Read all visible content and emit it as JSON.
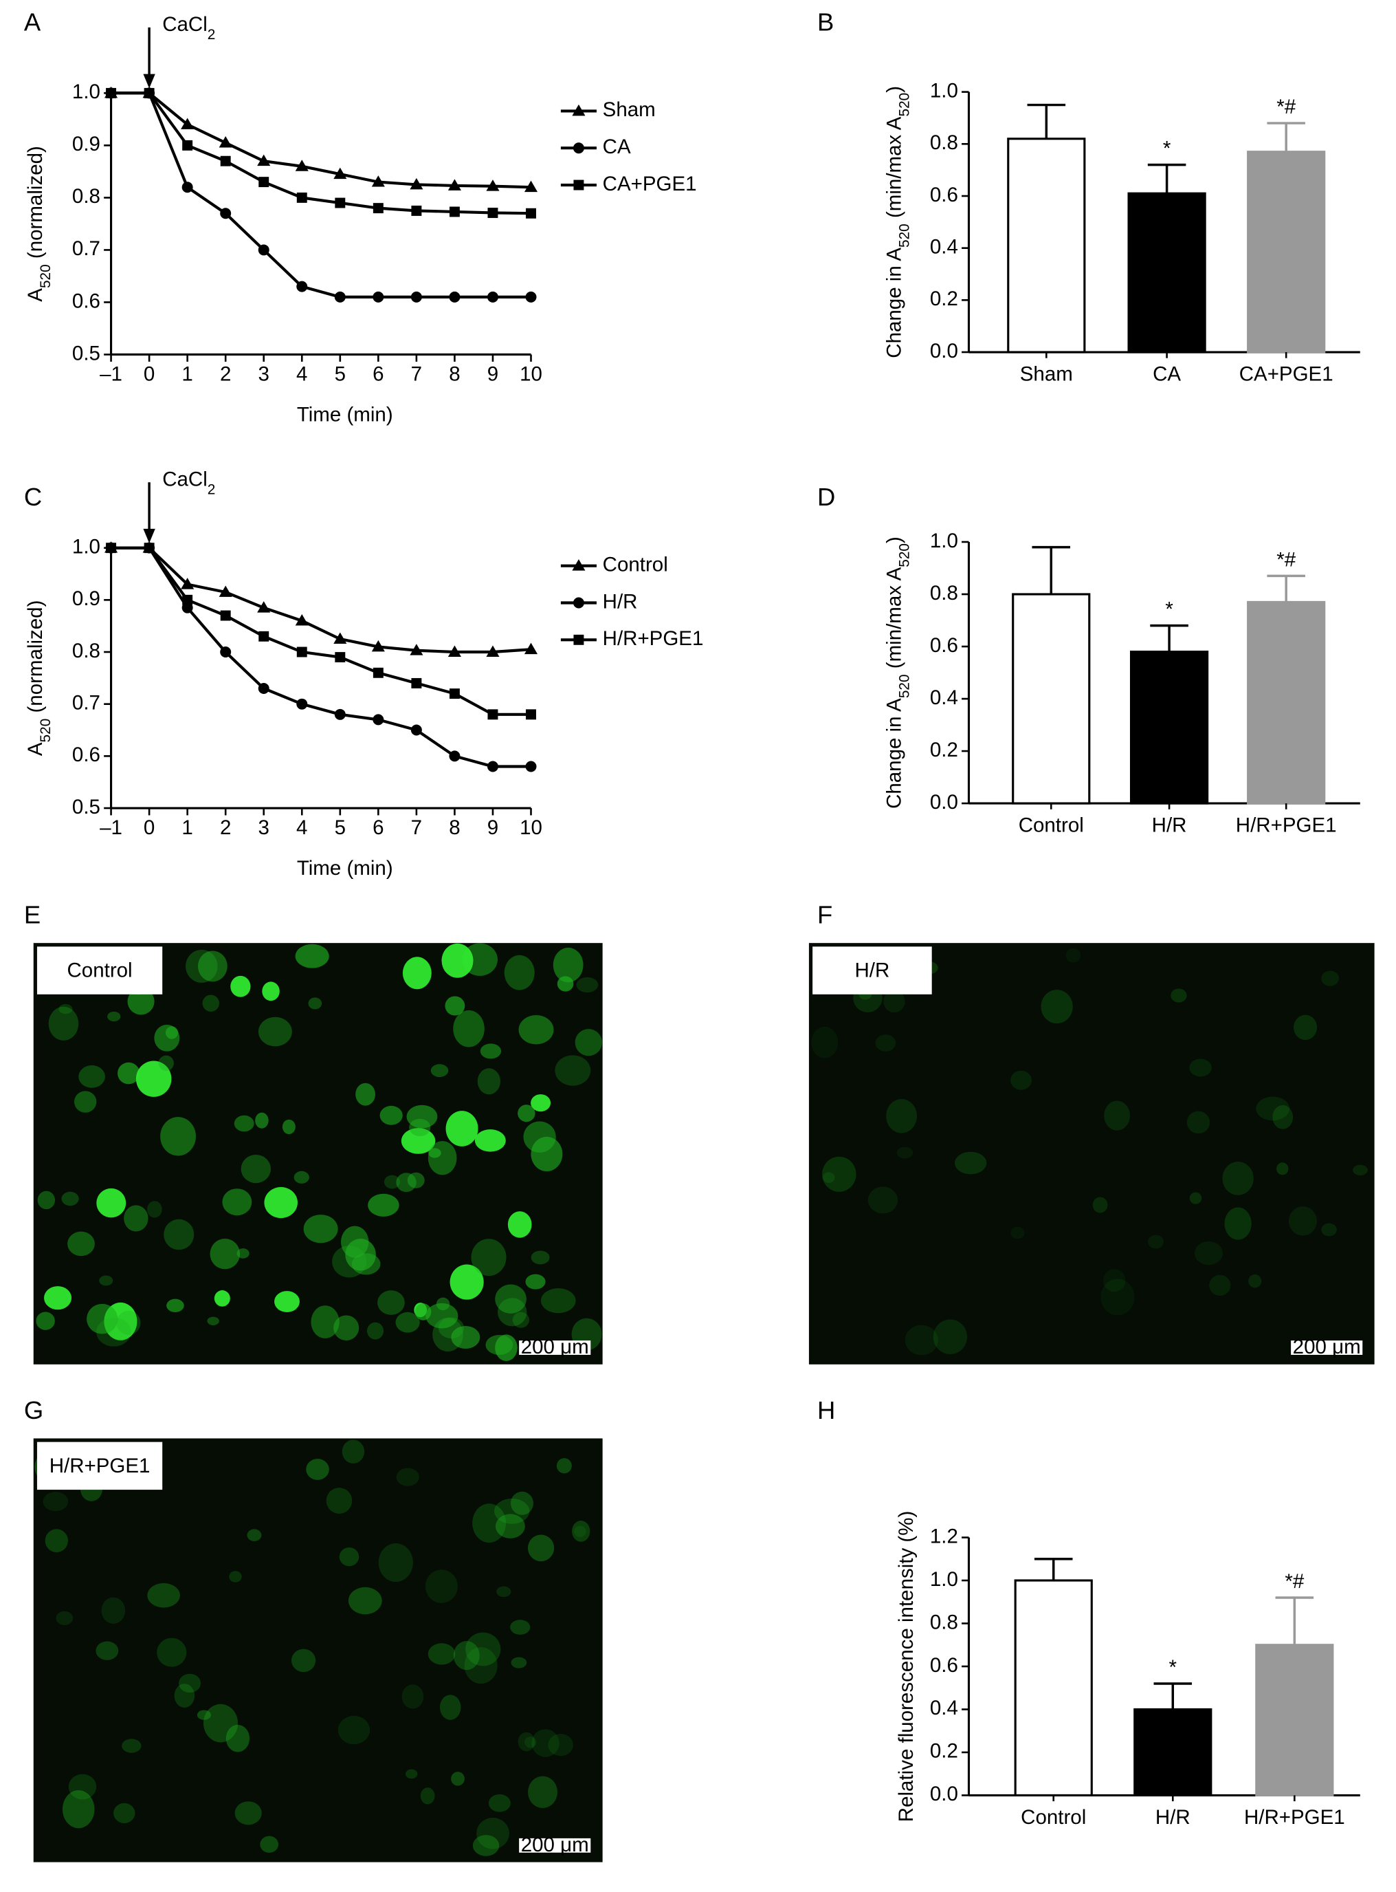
{
  "chart_data": [
    {
      "type": "line",
      "panel": "A",
      "x_label": "Time (min)",
      "y_label": [
        "A",
        "520",
        " (normalized)"
      ],
      "annotation": {
        "text": [
          "CaCl",
          "2"
        ],
        "x": 0
      },
      "x": [
        -1,
        0,
        1,
        2,
        3,
        4,
        5,
        6,
        7,
        8,
        9,
        10
      ],
      "xlim": [
        -1,
        10
      ],
      "xticks": [
        {
          "value": -1,
          "label": "–1"
        },
        0,
        1,
        2,
        3,
        4,
        5,
        6,
        7,
        8,
        9,
        10
      ],
      "ylim": [
        0.5,
        1.0
      ],
      "yticks": [
        0.5,
        0.6,
        0.7,
        0.8,
        0.9,
        {
          "value": 1,
          "label": "1.0"
        }
      ],
      "series": [
        {
          "name": "Sham",
          "color": "#000000",
          "marker": "triangle",
          "values": [
            1.0,
            1.0,
            0.94,
            0.905,
            0.87,
            0.86,
            0.845,
            0.83,
            0.825,
            0.823,
            0.822,
            0.82
          ]
        },
        {
          "name": "CA",
          "color": "#000000",
          "marker": "circle",
          "values": [
            1.0,
            1.0,
            0.82,
            0.77,
            0.7,
            0.63,
            0.61,
            0.61,
            0.61,
            0.61,
            0.61,
            0.61
          ]
        },
        {
          "name": "CA+PGE1",
          "color": "#000000",
          "marker": "square",
          "values": [
            1.0,
            1.0,
            0.9,
            0.87,
            0.83,
            0.8,
            0.79,
            0.78,
            0.775,
            0.773,
            0.771,
            0.77
          ]
        }
      ]
    },
    {
      "type": "bar",
      "panel": "B",
      "y_label": [
        "Change in A",
        "520",
        " (min/max A",
        "520",
        ")"
      ],
      "categories": [
        "Sham",
        "CA",
        "CA+PGE1"
      ],
      "values": [
        0.82,
        0.61,
        0.77
      ],
      "errors": [
        0.13,
        0.11,
        0.11
      ],
      "colors": [
        "#ffffff",
        "#000000",
        "#999999"
      ],
      "significance": [
        null,
        "*",
        "*#"
      ],
      "ylim": [
        0,
        1.0
      ],
      "yticks": [
        {
          "value": 0,
          "label": "0.0"
        },
        0.2,
        0.4,
        0.6,
        0.8,
        {
          "value": 1,
          "label": "1.0"
        }
      ]
    },
    {
      "type": "line",
      "panel": "C",
      "x_label": "Time (min)",
      "y_label": [
        "A",
        "520",
        " (normalized)"
      ],
      "annotation": {
        "text": [
          "CaCl",
          "2"
        ],
        "x": 0
      },
      "x": [
        -1,
        0,
        1,
        2,
        3,
        4,
        5,
        6,
        7,
        8,
        9,
        10
      ],
      "xlim": [
        -1,
        10
      ],
      "xticks": [
        {
          "value": -1,
          "label": "–1"
        },
        0,
        1,
        2,
        3,
        4,
        5,
        6,
        7,
        8,
        9,
        10
      ],
      "ylim": [
        0.5,
        1.0
      ],
      "yticks": [
        0.5,
        0.6,
        0.7,
        0.8,
        0.9,
        {
          "value": 1,
          "label": "1.0"
        }
      ],
      "series": [
        {
          "name": "Control",
          "color": "#000000",
          "marker": "triangle",
          "values": [
            1.0,
            1.0,
            0.93,
            0.915,
            0.885,
            0.86,
            0.825,
            0.81,
            0.803,
            0.8,
            0.8,
            0.805
          ]
        },
        {
          "name": "H/R",
          "color": "#000000",
          "marker": "circle",
          "values": [
            1.0,
            1.0,
            0.885,
            0.8,
            0.73,
            0.7,
            0.68,
            0.67,
            0.65,
            0.6,
            0.58,
            0.58
          ]
        },
        {
          "name": "H/R+PGE1",
          "color": "#000000",
          "marker": "square",
          "values": [
            1.0,
            1.0,
            0.9,
            0.87,
            0.83,
            0.8,
            0.79,
            0.76,
            0.74,
            0.72,
            0.68,
            0.68
          ]
        }
      ]
    },
    {
      "type": "bar",
      "panel": "D",
      "y_label": [
        "Change in A",
        "520",
        " (min/max A",
        "520",
        ")"
      ],
      "categories": [
        "Control",
        "H/R",
        "H/R+PGE1"
      ],
      "values": [
        0.8,
        0.58,
        0.77
      ],
      "errors": [
        0.18,
        0.1,
        0.1
      ],
      "colors": [
        "#ffffff",
        "#000000",
        "#999999"
      ],
      "significance": [
        null,
        "*",
        "*#"
      ],
      "ylim": [
        0,
        1.0
      ],
      "yticks": [
        {
          "value": 0,
          "label": "0.0"
        },
        0.2,
        0.4,
        0.6,
        0.8,
        {
          "value": 1,
          "label": "1.0"
        }
      ]
    },
    {
      "type": "bar",
      "panel": "H",
      "y_label": [
        "Relative fluorescence intensity (%)"
      ],
      "categories": [
        "Control",
        "H/R",
        "H/R+PGE1"
      ],
      "values": [
        1.0,
        0.4,
        0.7
      ],
      "errors": [
        0.1,
        0.12,
        0.22
      ],
      "colors": [
        "#ffffff",
        "#000000",
        "#999999"
      ],
      "significance": [
        null,
        "*",
        "*#"
      ],
      "ylim": [
        0,
        1.2
      ],
      "yticks": [
        {
          "value": 0,
          "label": "0.0"
        },
        0.2,
        0.4,
        0.6,
        0.8,
        {
          "value": 1,
          "label": "1.0"
        },
        1.2
      ]
    }
  ],
  "images": [
    {
      "panel": "E",
      "label": "Control",
      "scale_bar": "200 μm"
    },
    {
      "panel": "F",
      "label": "H/R",
      "scale_bar": "200 μm"
    },
    {
      "panel": "G",
      "label": "H/R+PGE1",
      "scale_bar": "200 μm"
    }
  ]
}
